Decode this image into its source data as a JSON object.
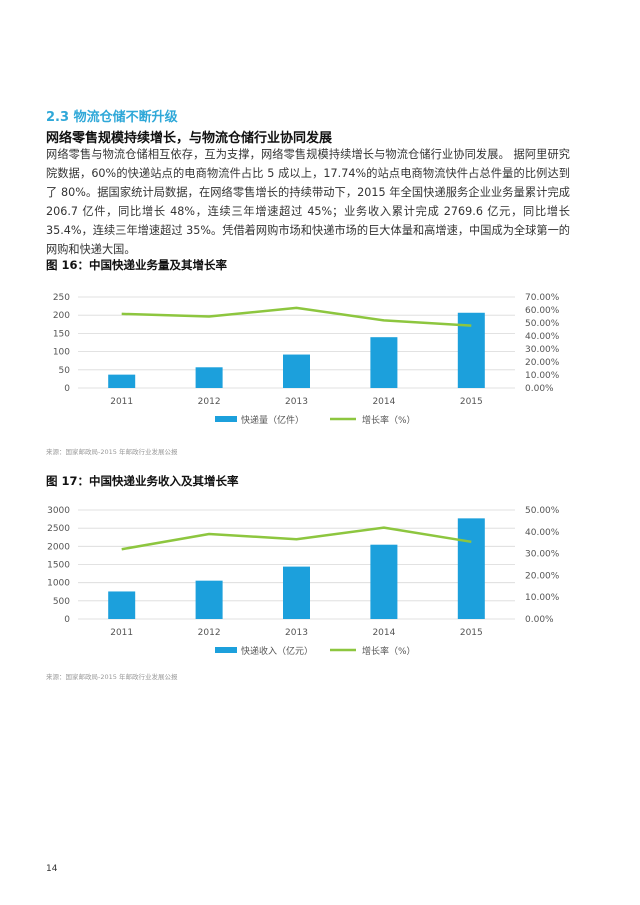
{
  "section": {
    "number": "2.3",
    "title": "物流仓储不断升级"
  },
  "subtitle": "网络零售规模持续增长，与物流仓储行业协同发展",
  "paragraph": "网络零售与物流仓储相互依存，互为支撑，网络零售规模持续增长与物流仓储行业协同发展。 据阿里研究院数据，60%的快递站点的电商物流件占比 5 成以上，17.74%的站点电商物流快件占总件量的比例达到了 80%。据国家统计局数据，在网络零售增长的持续带动下，2015 年全国快递服务企业业务量累计完成 206.7 亿件，同比增长 48%，连续三年增速超过 45%；业务收入累计完成 2769.6 亿元，同比增长 35.4%，连续三年增速超过 35%。凭借着网购市场和快递市场的巨大体量和高增速，中国成为全球第一的网购和快递大国。",
  "colors": {
    "bar": "#1ca0dc",
    "line": "#8dc63f",
    "accent": "#2fa8d8"
  },
  "chart_data": [
    {
      "type": "bar",
      "title": "图 16：中国快递业务量及其增长率",
      "categories": [
        "2011",
        "2012",
        "2013",
        "2014",
        "2015"
      ],
      "series": [
        {
          "name": "快递量（亿件）",
          "kind": "bar",
          "axis": "left",
          "values": [
            36.7,
            56.9,
            91.9,
            139.6,
            206.7
          ]
        },
        {
          "name": "增长率（%）",
          "kind": "line",
          "axis": "right",
          "values": [
            57.0,
            55.0,
            61.6,
            52.0,
            48.0
          ]
        }
      ],
      "y_left": {
        "min": 0,
        "max": 250,
        "ticks": [
          "0",
          "50",
          "100",
          "150",
          "200",
          "250"
        ]
      },
      "y_right": {
        "min": 0,
        "max": 70,
        "ticks": [
          "0.00%",
          "10.00%",
          "20.00%",
          "30.00%",
          "40.00%",
          "50.00%",
          "60.00%",
          "70.00%"
        ]
      },
      "grid": true,
      "legend": "bottom",
      "source": "来源：国家邮政局-2015 年邮政行业发展公报"
    },
    {
      "type": "bar",
      "title": "图 17：中国快递业务收入及其增长率",
      "categories": [
        "2011",
        "2012",
        "2013",
        "2014",
        "2015"
      ],
      "series": [
        {
          "name": "快递收入（亿元）",
          "kind": "bar",
          "axis": "left",
          "values": [
            758,
            1055,
            1442,
            2045,
            2770
          ]
        },
        {
          "name": "增长率（%）",
          "kind": "line",
          "axis": "right",
          "values": [
            32.0,
            39.0,
            36.6,
            41.9,
            35.4
          ]
        }
      ],
      "y_left": {
        "min": 0,
        "max": 3000,
        "ticks": [
          "0",
          "500",
          "1000",
          "1500",
          "2000",
          "2500",
          "3000"
        ]
      },
      "y_right": {
        "min": 0,
        "max": 50,
        "ticks": [
          "0.00%",
          "10.00%",
          "20.00%",
          "30.00%",
          "40.00%",
          "50.00%"
        ]
      },
      "grid": true,
      "legend": "bottom",
      "source": "来源：国家邮政局-2015 年邮政行业发展公报"
    }
  ],
  "page_number": "14"
}
